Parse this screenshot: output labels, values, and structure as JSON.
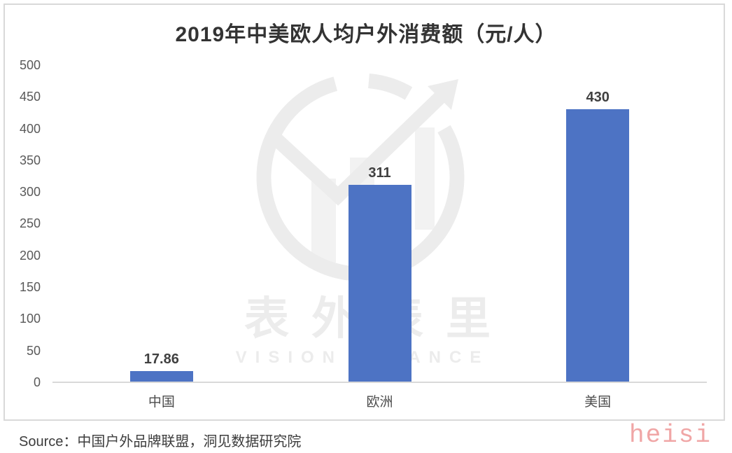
{
  "page": {
    "source_label": "Source：中国户外品牌联盟，洞见数据研究院",
    "corner_watermark": "heisi"
  },
  "watermark": {
    "logo_icon": "growth-arrow-circle",
    "cn_text": "表外表里",
    "en_text": "VISION FINANCE"
  },
  "chart_data": {
    "type": "bar",
    "title": "2019年中美欧人均户外消费额（元/人）",
    "categories": [
      "中国",
      "欧洲",
      "美国"
    ],
    "values": [
      17.86,
      311,
      430
    ],
    "data_labels": [
      "17.86",
      "311",
      "430"
    ],
    "xlabel": "",
    "ylabel": "",
    "unit": "元/人",
    "ylim": [
      0,
      500
    ],
    "ytick_step": 50,
    "yticks_top_down": [
      500,
      450,
      400,
      350,
      300,
      250,
      200,
      150,
      100,
      50,
      0
    ],
    "grid": false,
    "legend": false,
    "bar_color": "#4D73C4"
  }
}
